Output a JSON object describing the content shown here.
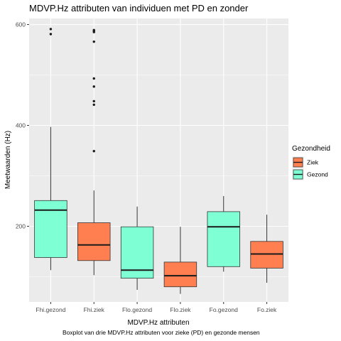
{
  "chart_data": {
    "type": "boxplot",
    "title": "MDVP.Hz attributen van individuen met PD en zonder",
    "xlabel": "MDVP.Hz attributen",
    "ylabel": "Meetwaarden (Hz)",
    "caption": "Boxplot van drie MDVP.Hz attributen voor zieke (PD) en gezonde mensen",
    "ylim": [
      50,
      612
    ],
    "yticks": [
      200,
      400,
      600
    ],
    "grid": true,
    "legend": {
      "title": "Gezondheid",
      "placement": "right",
      "entries": [
        {
          "label": "Ziek",
          "color": "#FF7F50"
        },
        {
          "label": "Gezond",
          "color": "#7FFFD4"
        }
      ]
    },
    "categories": [
      "Fhi.gezond",
      "Fhi.ziek",
      "Flo.gezond",
      "Flo.ziek",
      "Fo.gezond",
      "Fo.ziek"
    ],
    "boxes": [
      {
        "category": "Fhi.gezond",
        "group": "Gezond",
        "min": 113,
        "q1": 138,
        "median": 232,
        "q3": 251,
        "max": 397,
        "outliers": [
          581,
          591
        ]
      },
      {
        "category": "Fhi.ziek",
        "group": "Ziek",
        "min": 103,
        "q1": 132,
        "median": 163,
        "q3": 207,
        "max": 271,
        "outliers": [
          349,
          441,
          448,
          477,
          493,
          566,
          585,
          587,
          589
        ]
      },
      {
        "category": "Flo.gezond",
        "group": "Gezond",
        "min": 74,
        "q1": 97,
        "median": 113,
        "q3": 199,
        "max": 239,
        "outliers": []
      },
      {
        "category": "Flo.ziek",
        "group": "Ziek",
        "min": 66,
        "q1": 80,
        "median": 102,
        "q3": 129,
        "max": 199,
        "outliers": []
      },
      {
        "category": "Fo.gezond",
        "group": "Gezond",
        "min": 110,
        "q1": 120,
        "median": 199,
        "q3": 229,
        "max": 260,
        "outliers": []
      },
      {
        "category": "Fo.ziek",
        "group": "Ziek",
        "min": 88,
        "q1": 117,
        "median": 145,
        "q3": 170,
        "max": 223,
        "outliers": []
      }
    ]
  }
}
